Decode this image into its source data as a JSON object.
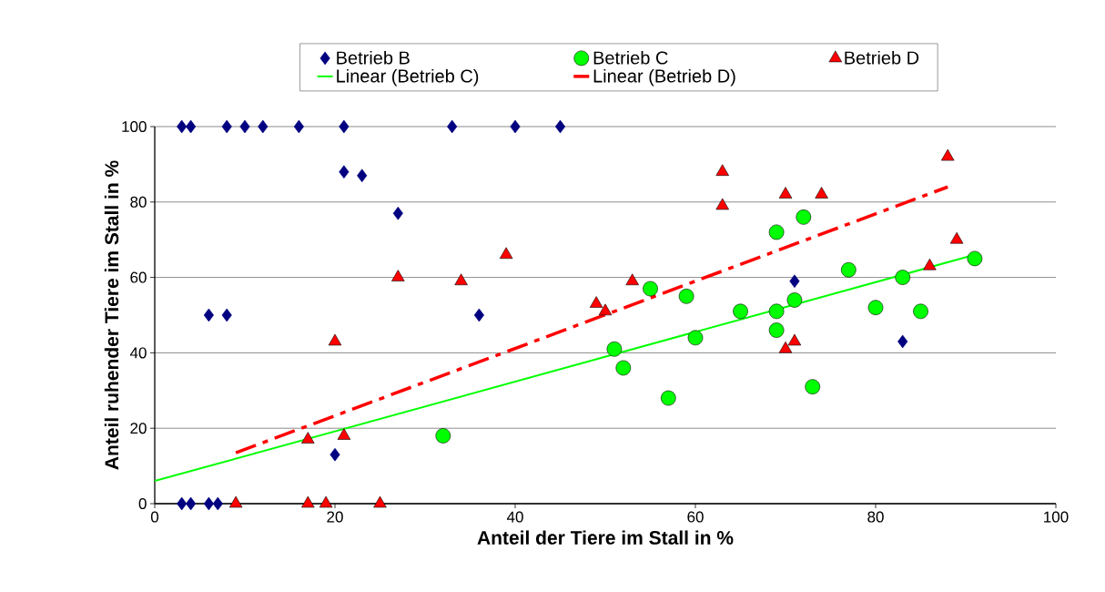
{
  "chart_data": {
    "type": "scatter",
    "xlabel": "Anteil der Tiere im Stall in %",
    "ylabel": "Anteil ruhender Tiere im Stall in %",
    "xlim": [
      0,
      100
    ],
    "ylim": [
      0,
      100
    ],
    "xticks": [
      0,
      20,
      40,
      60,
      80,
      100
    ],
    "yticks": [
      0,
      20,
      40,
      60,
      80,
      100
    ],
    "grid": "y",
    "legend": "top",
    "series": [
      {
        "name": "Betrieb B",
        "color": "#000080",
        "marker": "diamond",
        "x": [
          3,
          4,
          8,
          10,
          12,
          16,
          21,
          33,
          40,
          45,
          21,
          23,
          27,
          6,
          8,
          36,
          20,
          71,
          83,
          3,
          4,
          6,
          7
        ],
        "values": [
          100,
          100,
          100,
          100,
          100,
          100,
          100,
          100,
          100,
          100,
          88,
          87,
          77,
          50,
          50,
          50,
          13,
          59,
          43,
          0,
          0,
          0,
          0
        ]
      },
      {
        "name": "Betrieb C",
        "color": "#00ff00",
        "marker": "circle",
        "x": [
          32,
          51,
          52,
          55,
          57,
          59,
          60,
          65,
          69,
          69,
          69,
          71,
          72,
          73,
          77,
          80,
          83,
          85,
          91
        ],
        "values": [
          18,
          41,
          36,
          57,
          28,
          55,
          44,
          51,
          72,
          51,
          46,
          54,
          76,
          31,
          62,
          52,
          60,
          51,
          65
        ]
      },
      {
        "name": "Betrieb D",
        "color": "#ff0000",
        "marker": "triangle",
        "x": [
          9,
          17,
          19,
          25,
          17,
          21,
          20,
          27,
          34,
          39,
          49,
          50,
          53,
          63,
          63,
          70,
          74,
          70,
          71,
          86,
          89,
          88
        ],
        "values": [
          0,
          0,
          0,
          0,
          17,
          18,
          43,
          60,
          59,
          66,
          53,
          51,
          59,
          88,
          79,
          82,
          82,
          41,
          43,
          63,
          70,
          92
        ]
      },
      {
        "name": "Linear (Betrieb C)",
        "type": "line",
        "color": "#00ff00",
        "line_style": "solid",
        "x": [
          0,
          91
        ],
        "values": [
          6,
          66
        ]
      },
      {
        "name": "Linear (Betrieb D)",
        "type": "line",
        "color": "#ff0000",
        "line_style": "dashed",
        "x": [
          9,
          88
        ],
        "values": [
          13.5,
          84
        ]
      }
    ]
  }
}
